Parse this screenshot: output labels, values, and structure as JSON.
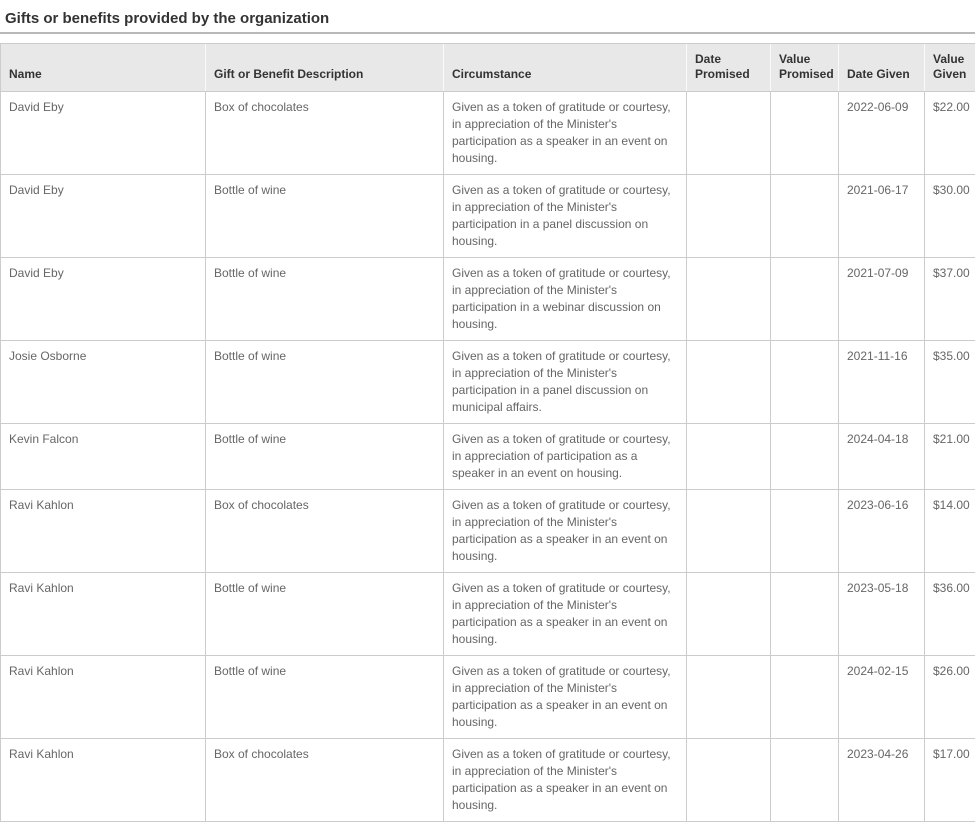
{
  "page": {
    "title": "Gifts or benefits provided by the organization"
  },
  "colors": {
    "title_text": "#333333",
    "header_bg": "#e8e8e8",
    "header_text": "#333333",
    "body_text": "#666666",
    "border": "#cccccc",
    "title_rule": "#b9b9b9"
  },
  "table": {
    "columns": [
      {
        "key": "name",
        "label": "Name"
      },
      {
        "key": "gift",
        "label": "Gift or Benefit Description"
      },
      {
        "key": "circumstance",
        "label": "Circumstance"
      },
      {
        "key": "date_promised",
        "label": "Date Promised"
      },
      {
        "key": "value_promised",
        "label": "Value Promised"
      },
      {
        "key": "date_given",
        "label": "Date Given"
      },
      {
        "key": "value_given",
        "label": "Value Given"
      }
    ],
    "rows": [
      {
        "name": "David Eby",
        "gift": "Box of chocolates",
        "circumstance": "Given as a token of gratitude or courtesy, in appreciation of the Minister's participation as a speaker in an event on housing.",
        "date_promised": "",
        "value_promised": "",
        "date_given": "2022-06-09",
        "value_given": "$22.00"
      },
      {
        "name": "David Eby",
        "gift": "Bottle of wine",
        "circumstance": "Given as a token of gratitude or courtesy, in appreciation of the Minister's participation in a panel discussion on housing.",
        "date_promised": "",
        "value_promised": "",
        "date_given": "2021-06-17",
        "value_given": "$30.00"
      },
      {
        "name": "David Eby",
        "gift": "Bottle of wine",
        "circumstance": "Given as a token of gratitude or courtesy, in appreciation of the Minister's participation in a webinar discussion on housing.",
        "date_promised": "",
        "value_promised": "",
        "date_given": "2021-07-09",
        "value_given": "$37.00"
      },
      {
        "name": "Josie Osborne",
        "gift": "Bottle of wine",
        "circumstance": "Given as a token of gratitude or courtesy, in appreciation of the Minister's participation in a panel discussion on municipal affairs.",
        "date_promised": "",
        "value_promised": "",
        "date_given": "2021-11-16",
        "value_given": "$35.00"
      },
      {
        "name": "Kevin Falcon",
        "gift": "Bottle of wine",
        "circumstance": "Given as a token of gratitude or courtesy, in appreciation of participation as a speaker in an event on housing.",
        "date_promised": "",
        "value_promised": "",
        "date_given": "2024-04-18",
        "value_given": "$21.00"
      },
      {
        "name": "Ravi Kahlon",
        "gift": "Box of chocolates",
        "circumstance": "Given as a token of gratitude or courtesy, in appreciation of the Minister's participation as a speaker in an event on housing.",
        "date_promised": "",
        "value_promised": "",
        "date_given": "2023-06-16",
        "value_given": "$14.00"
      },
      {
        "name": "Ravi Kahlon",
        "gift": "Bottle of wine",
        "circumstance": "Given as a token of gratitude or courtesy, in appreciation of the Minister's participation as a speaker in an event on housing.",
        "date_promised": "",
        "value_promised": "",
        "date_given": "2023-05-18",
        "value_given": "$36.00"
      },
      {
        "name": "Ravi Kahlon",
        "gift": "Bottle of wine",
        "circumstance": "Given as a token of gratitude or courtesy, in appreciation of the Minister's participation as a speaker in an event on housing.",
        "date_promised": "",
        "value_promised": "",
        "date_given": "2024-02-15",
        "value_given": "$26.00"
      },
      {
        "name": "Ravi Kahlon",
        "gift": "Box of chocolates",
        "circumstance": "Given as a token of gratitude or courtesy, in appreciation of the Minister's participation as a speaker in an event on housing.",
        "date_promised": "",
        "value_promised": "",
        "date_given": "2023-04-26",
        "value_given": "$17.00"
      }
    ]
  }
}
